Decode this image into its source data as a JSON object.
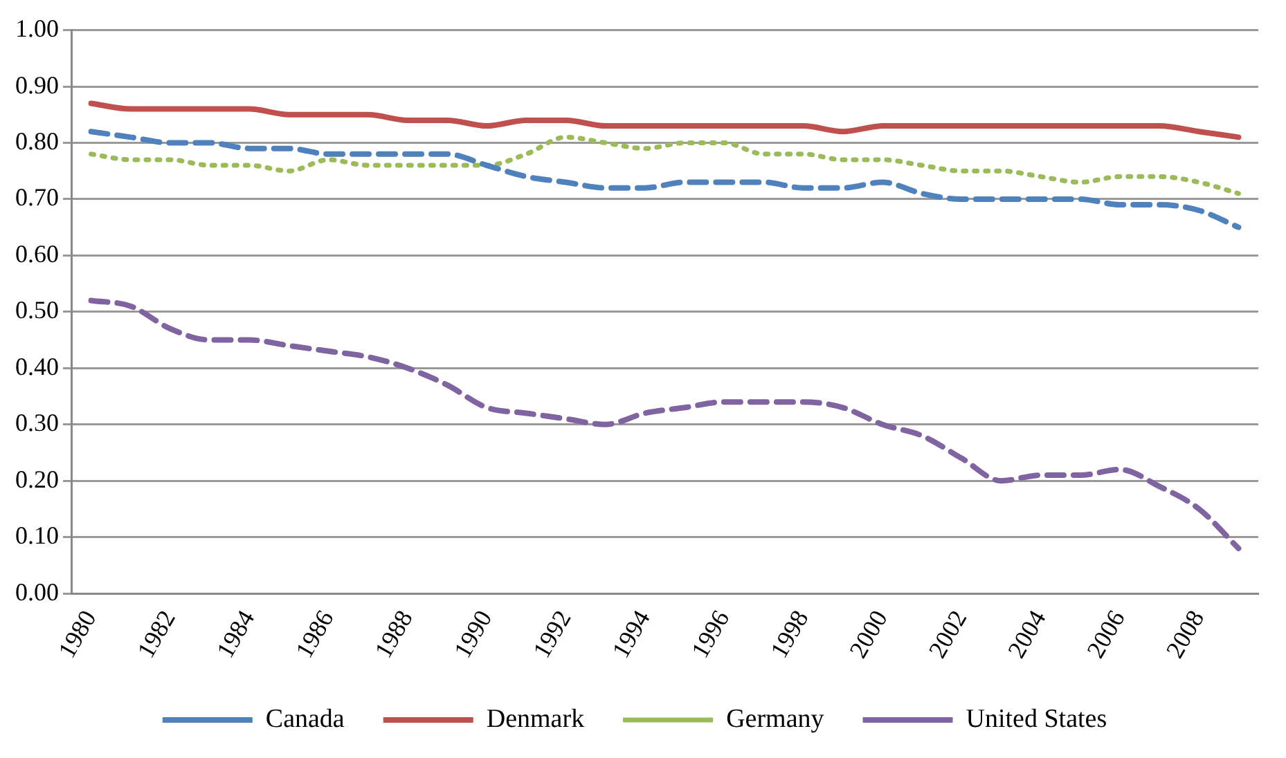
{
  "chart_data": {
    "type": "line",
    "categories": [
      "1980",
      null,
      "1982",
      null,
      "1984",
      null,
      "1986",
      null,
      "1988",
      null,
      "1990",
      null,
      "1992",
      null,
      "1994",
      null,
      "1996",
      null,
      "1998",
      null,
      "2000",
      null,
      "2002",
      null,
      "2004",
      null,
      "2006",
      null,
      "2008",
      null
    ],
    "series": [
      {
        "name": "Canada",
        "color": "#4f81bd",
        "line_style": "dashed",
        "values": [
          0.82,
          0.81,
          0.8,
          0.8,
          0.79,
          0.79,
          0.78,
          0.78,
          0.78,
          0.78,
          0.76,
          0.74,
          0.73,
          0.72,
          0.72,
          0.73,
          0.73,
          0.73,
          0.72,
          0.72,
          0.73,
          0.71,
          0.7,
          0.7,
          0.7,
          0.7,
          0.69,
          0.69,
          0.68,
          0.65
        ]
      },
      {
        "name": "Denmark",
        "color": "#c0504d",
        "line_style": "solid",
        "values": [
          0.87,
          0.86,
          0.86,
          0.86,
          0.86,
          0.85,
          0.85,
          0.85,
          0.84,
          0.84,
          0.83,
          0.84,
          0.84,
          0.83,
          0.83,
          0.83,
          0.83,
          0.83,
          0.83,
          0.82,
          0.83,
          0.83,
          0.83,
          0.83,
          0.83,
          0.83,
          0.83,
          0.83,
          0.82,
          0.81
        ]
      },
      {
        "name": "Germany",
        "color": "#9bbb59",
        "line_style": "dotted",
        "values": [
          0.78,
          0.77,
          0.77,
          0.76,
          0.76,
          0.75,
          0.77,
          0.76,
          0.76,
          0.76,
          0.76,
          0.78,
          0.81,
          0.8,
          0.79,
          0.8,
          0.8,
          0.78,
          0.78,
          0.77,
          0.77,
          0.76,
          0.75,
          0.75,
          0.74,
          0.73,
          0.74,
          0.74,
          0.73,
          0.71
        ]
      },
      {
        "name": "United States",
        "color": "#8064a2",
        "line_style": "dashed",
        "values": [
          0.52,
          0.51,
          0.47,
          0.45,
          0.45,
          0.44,
          0.43,
          0.42,
          0.4,
          0.37,
          0.33,
          0.32,
          0.31,
          0.3,
          0.32,
          0.33,
          0.34,
          0.34,
          0.34,
          0.33,
          0.3,
          0.28,
          0.24,
          0.2,
          0.21,
          0.21,
          0.22,
          0.19,
          0.15,
          0.08
        ]
      }
    ],
    "ylim": [
      0,
      1
    ],
    "yticks": [
      {
        "value": 0,
        "label": "0.00"
      },
      {
        "value": 0.1,
        "label": "0.10"
      },
      {
        "value": 0.2,
        "label": "0.20"
      },
      {
        "value": 0.3,
        "label": "0.30"
      },
      {
        "value": 0.4,
        "label": "0.40"
      },
      {
        "value": 0.5,
        "label": "0.50"
      },
      {
        "value": 0.6,
        "label": "0.60"
      },
      {
        "value": 0.7,
        "label": "0.70"
      },
      {
        "value": 0.8,
        "label": "0.80"
      },
      {
        "value": 0.9,
        "label": "0.90"
      },
      {
        "value": 1,
        "label": "1.00"
      }
    ],
    "grid": "y",
    "legend": "bottom",
    "marker": "none"
  }
}
